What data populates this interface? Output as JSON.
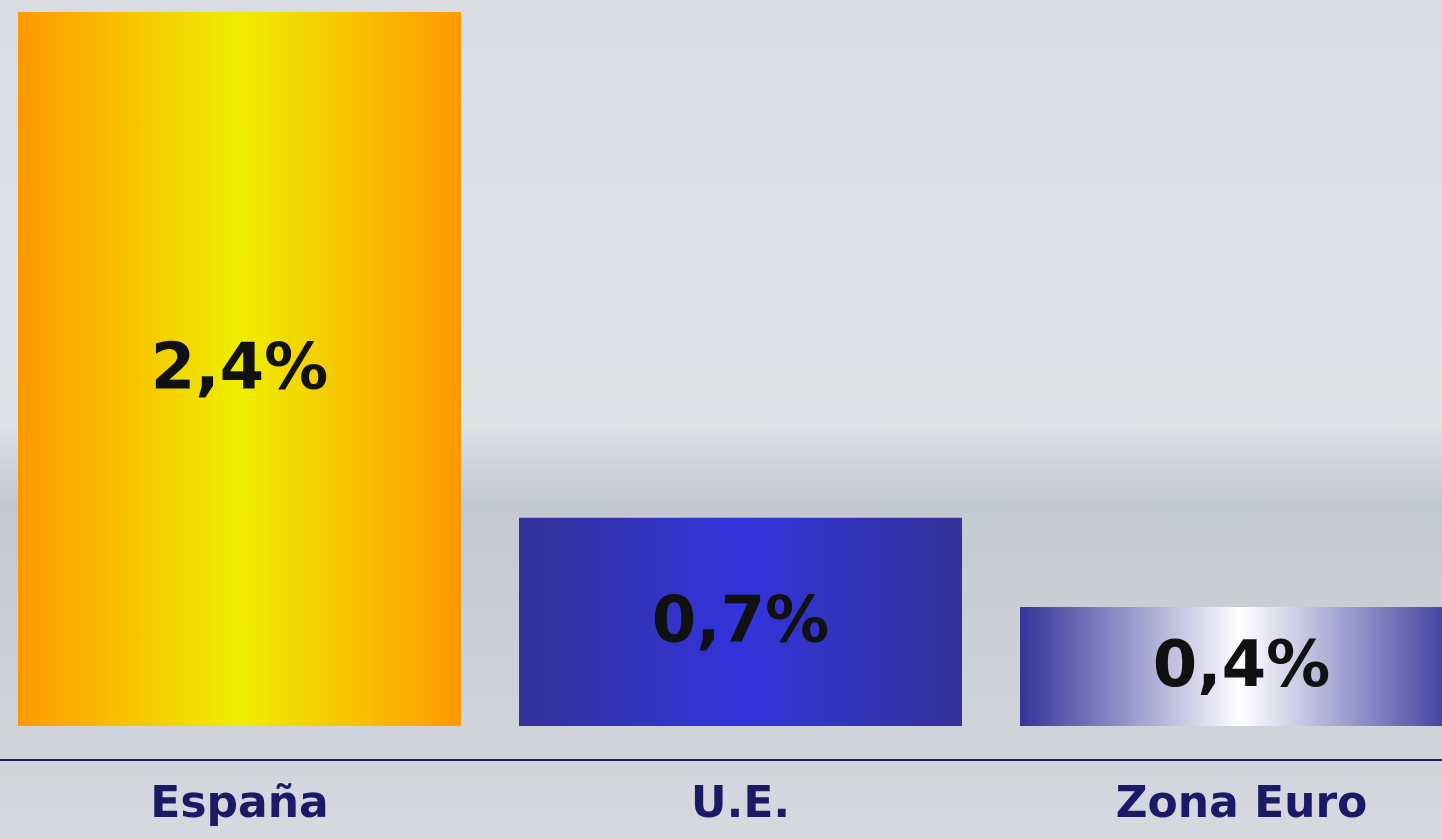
{
  "chart_data": {
    "type": "bar",
    "categories": [
      "España",
      "U.E.",
      "Zona Euro"
    ],
    "values": [
      2.4,
      0.7,
      0.4
    ],
    "value_labels": [
      "2,4%",
      "0,7%",
      "0,4%"
    ],
    "colors": [
      [
        "#ff9900",
        "#eeee00"
      ],
      [
        "#333399",
        "#3333dd"
      ],
      [
        "#333399",
        "#ffffff"
      ]
    ]
  }
}
